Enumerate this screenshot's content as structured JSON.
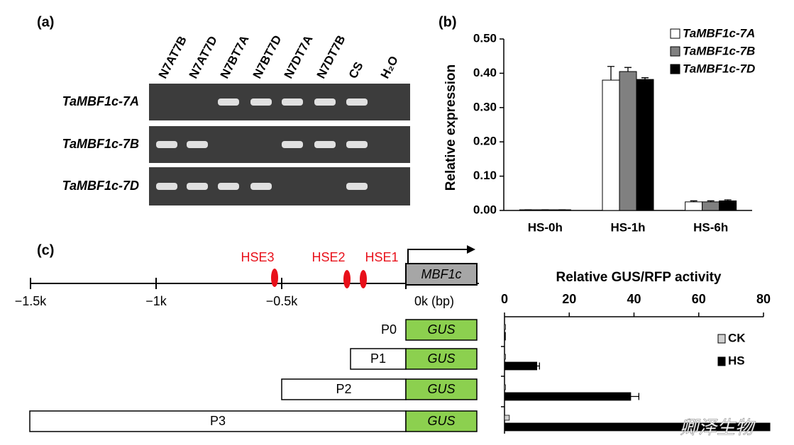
{
  "panels": {
    "a": "(a)",
    "b": "(b)",
    "c": "(c)"
  },
  "gel": {
    "lanes": [
      "N7AT7B",
      "N7AT7D",
      "N7BT7A",
      "N7BT7D",
      "N7DT7A",
      "N7DT7B",
      "CS",
      "H₂O"
    ],
    "rows": [
      "TaMBF1c-7A",
      "TaMBF1c-7B",
      "TaMBF1c-7D"
    ]
  },
  "promoter": {
    "elements": [
      "HSE3",
      "HSE2",
      "HSE1"
    ],
    "gene": "MBF1c",
    "axis_labels": [
      "−1.5k",
      "−1k",
      "−0.5k",
      "0k (bp)"
    ],
    "reporter": "GUS"
  },
  "watermark": "卿泽生物",
  "chart_data": [
    {
      "type": "bar",
      "y_label": "Relative expression",
      "categories": [
        "HS-0h",
        "HS-1h",
        "HS-6h"
      ],
      "series": [
        {
          "name": "TaMBF1c-7A",
          "color": "#ffffff",
          "values": [
            0.002,
            0.38,
            0.025
          ],
          "errors": [
            0,
            0.04,
            0.003
          ]
        },
        {
          "name": "TaMBF1c-7B",
          "color": "#808080",
          "values": [
            0.002,
            0.405,
            0.025
          ],
          "errors": [
            0,
            0.012,
            0.003
          ]
        },
        {
          "name": "TaMBF1c-7D",
          "color": "#000000",
          "values": [
            0.002,
            0.382,
            0.028
          ],
          "errors": [
            0,
            0.005,
            0.003
          ]
        }
      ],
      "ylim": [
        0,
        0.5
      ],
      "yticks": [
        {
          "value": 0,
          "label": "0.00"
        },
        {
          "value": 0.1,
          "label": "0.10"
        },
        {
          "value": 0.2,
          "label": "0.20"
        },
        {
          "value": 0.3,
          "label": "0.30"
        },
        {
          "value": 0.4,
          "label": "0.40"
        },
        {
          "value": 0.5,
          "label": "0.50"
        }
      ],
      "legend": "top-right"
    },
    {
      "type": "hbar",
      "title": "Relative GUS/RFP activity",
      "categories": [
        "P0",
        "P1",
        "P2",
        "P3"
      ],
      "series": [
        {
          "name": "CK",
          "color": "#d0d0d0",
          "values": [
            0.3,
            0.3,
            0.3,
            1.5
          ]
        },
        {
          "name": "HS",
          "color": "#000000",
          "values": [
            0.3,
            10,
            39,
            82
          ],
          "errors": [
            0,
            0.8,
            2.5,
            0
          ]
        }
      ],
      "xlim": [
        0,
        80
      ],
      "xticks": [
        0,
        20,
        40,
        60,
        80
      ],
      "legend": "right"
    }
  ]
}
